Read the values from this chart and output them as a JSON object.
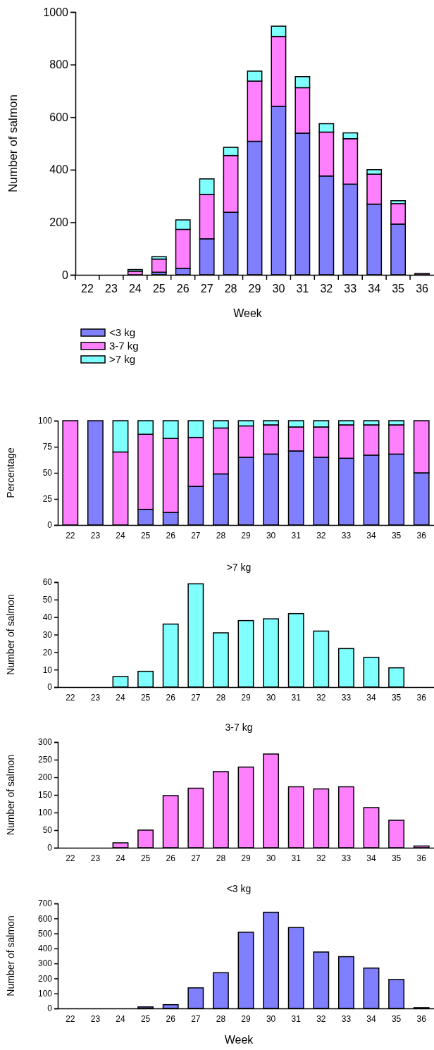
{
  "chart_data": [
    {
      "type": "bar",
      "stacked": true,
      "xlabel": "Week",
      "ylabel": "Number of salmon",
      "categories": [
        "22",
        "23",
        "24",
        "25",
        "26",
        "27",
        "28",
        "29",
        "30",
        "31",
        "32",
        "33",
        "34",
        "35",
        "36"
      ],
      "ylim": [
        0,
        1000
      ],
      "yticks": [
        0,
        200,
        400,
        600,
        800,
        1000
      ],
      "legend": "bottom left",
      "series": [
        {
          "name": "<3 kg",
          "color": "#8080ff",
          "values": [
            0,
            null,
            0,
            10,
            25,
            137,
            238,
            508,
            641,
            539,
            376,
            345,
            269,
            193,
            null
          ]
        },
        {
          "name": "3-7 kg",
          "color": "#ff80ff",
          "values": [
            null,
            0,
            14,
            50,
            148,
            169,
            216,
            229,
            266,
            173,
            167,
            173,
            114,
            78,
            5
          ]
        },
        {
          "name": ">7 kg",
          "color": "#80ffff",
          "values": [
            0,
            0,
            6,
            9,
            36,
            59,
            31,
            38,
            39,
            42,
            32,
            22,
            17,
            11,
            0
          ]
        }
      ]
    },
    {
      "type": "bar",
      "stacked": true,
      "ylabel": "Percentage",
      "categories": [
        "22",
        "23",
        "24",
        "25",
        "26",
        "27",
        "28",
        "29",
        "30",
        "31",
        "32",
        "33",
        "34",
        "35",
        "36"
      ],
      "ylim": [
        0,
        100
      ],
      "yticks": [
        0,
        25,
        50,
        75,
        100
      ],
      "series": [
        {
          "color": "#8080ff",
          "values": [
            0,
            100,
            0,
            15,
            12,
            37,
            49,
            65,
            68,
            71,
            65,
            64,
            67,
            68,
            50
          ]
        },
        {
          "color": "#ff80ff",
          "values": [
            100,
            0,
            70,
            72,
            71,
            47,
            44,
            30,
            28,
            23,
            29,
            32,
            29,
            28,
            50
          ]
        },
        {
          "color": "#80ffff",
          "values": [
            0,
            0,
            30,
            13,
            17,
            16,
            7,
            5,
            4,
            6,
            6,
            4,
            4,
            4,
            0
          ]
        }
      ]
    },
    {
      "type": "bar",
      "title": ">7 kg",
      "ylabel": "Number of salmon",
      "categories": [
        "22",
        "23",
        "24",
        "25",
        "26",
        "27",
        "28",
        "29",
        "30",
        "31",
        "32",
        "33",
        "34",
        "35",
        "36"
      ],
      "ylim": [
        0,
        60
      ],
      "yticks": [
        0,
        10,
        20,
        30,
        40,
        50,
        60
      ],
      "series": [
        {
          "color": "#80ffff",
          "values": [
            0,
            0,
            6,
            9,
            36,
            59,
            31,
            38,
            39,
            42,
            32,
            22,
            17,
            11,
            0
          ]
        }
      ]
    },
    {
      "type": "bar",
      "title": "3-7 kg",
      "ylabel": "Number of salmon",
      "categories": [
        "22",
        "23",
        "24",
        "25",
        "26",
        "27",
        "28",
        "29",
        "30",
        "31",
        "32",
        "33",
        "34",
        "35",
        "36"
      ],
      "ylim": [
        0,
        300
      ],
      "yticks": [
        0,
        50,
        100,
        150,
        200,
        250,
        300
      ],
      "series": [
        {
          "color": "#ff80ff",
          "values": [
            null,
            0,
            14,
            50,
            148,
            169,
            216,
            229,
            266,
            173,
            167,
            173,
            114,
            78,
            5
          ]
        }
      ]
    },
    {
      "type": "bar",
      "title": "<3 kg",
      "xlabel": "Week",
      "ylabel": "Number of salmon",
      "categories": [
        "22",
        "23",
        "24",
        "25",
        "26",
        "27",
        "28",
        "29",
        "30",
        "31",
        "32",
        "33",
        "34",
        "35",
        "36"
      ],
      "ylim": [
        0,
        700
      ],
      "yticks": [
        0,
        100,
        200,
        300,
        400,
        500,
        600,
        700
      ],
      "series": [
        {
          "color": "#8080ff",
          "values": [
            0,
            null,
            0,
            10,
            25,
            137,
            238,
            508,
            641,
            539,
            376,
            345,
            269,
            193,
            5
          ]
        }
      ]
    }
  ]
}
